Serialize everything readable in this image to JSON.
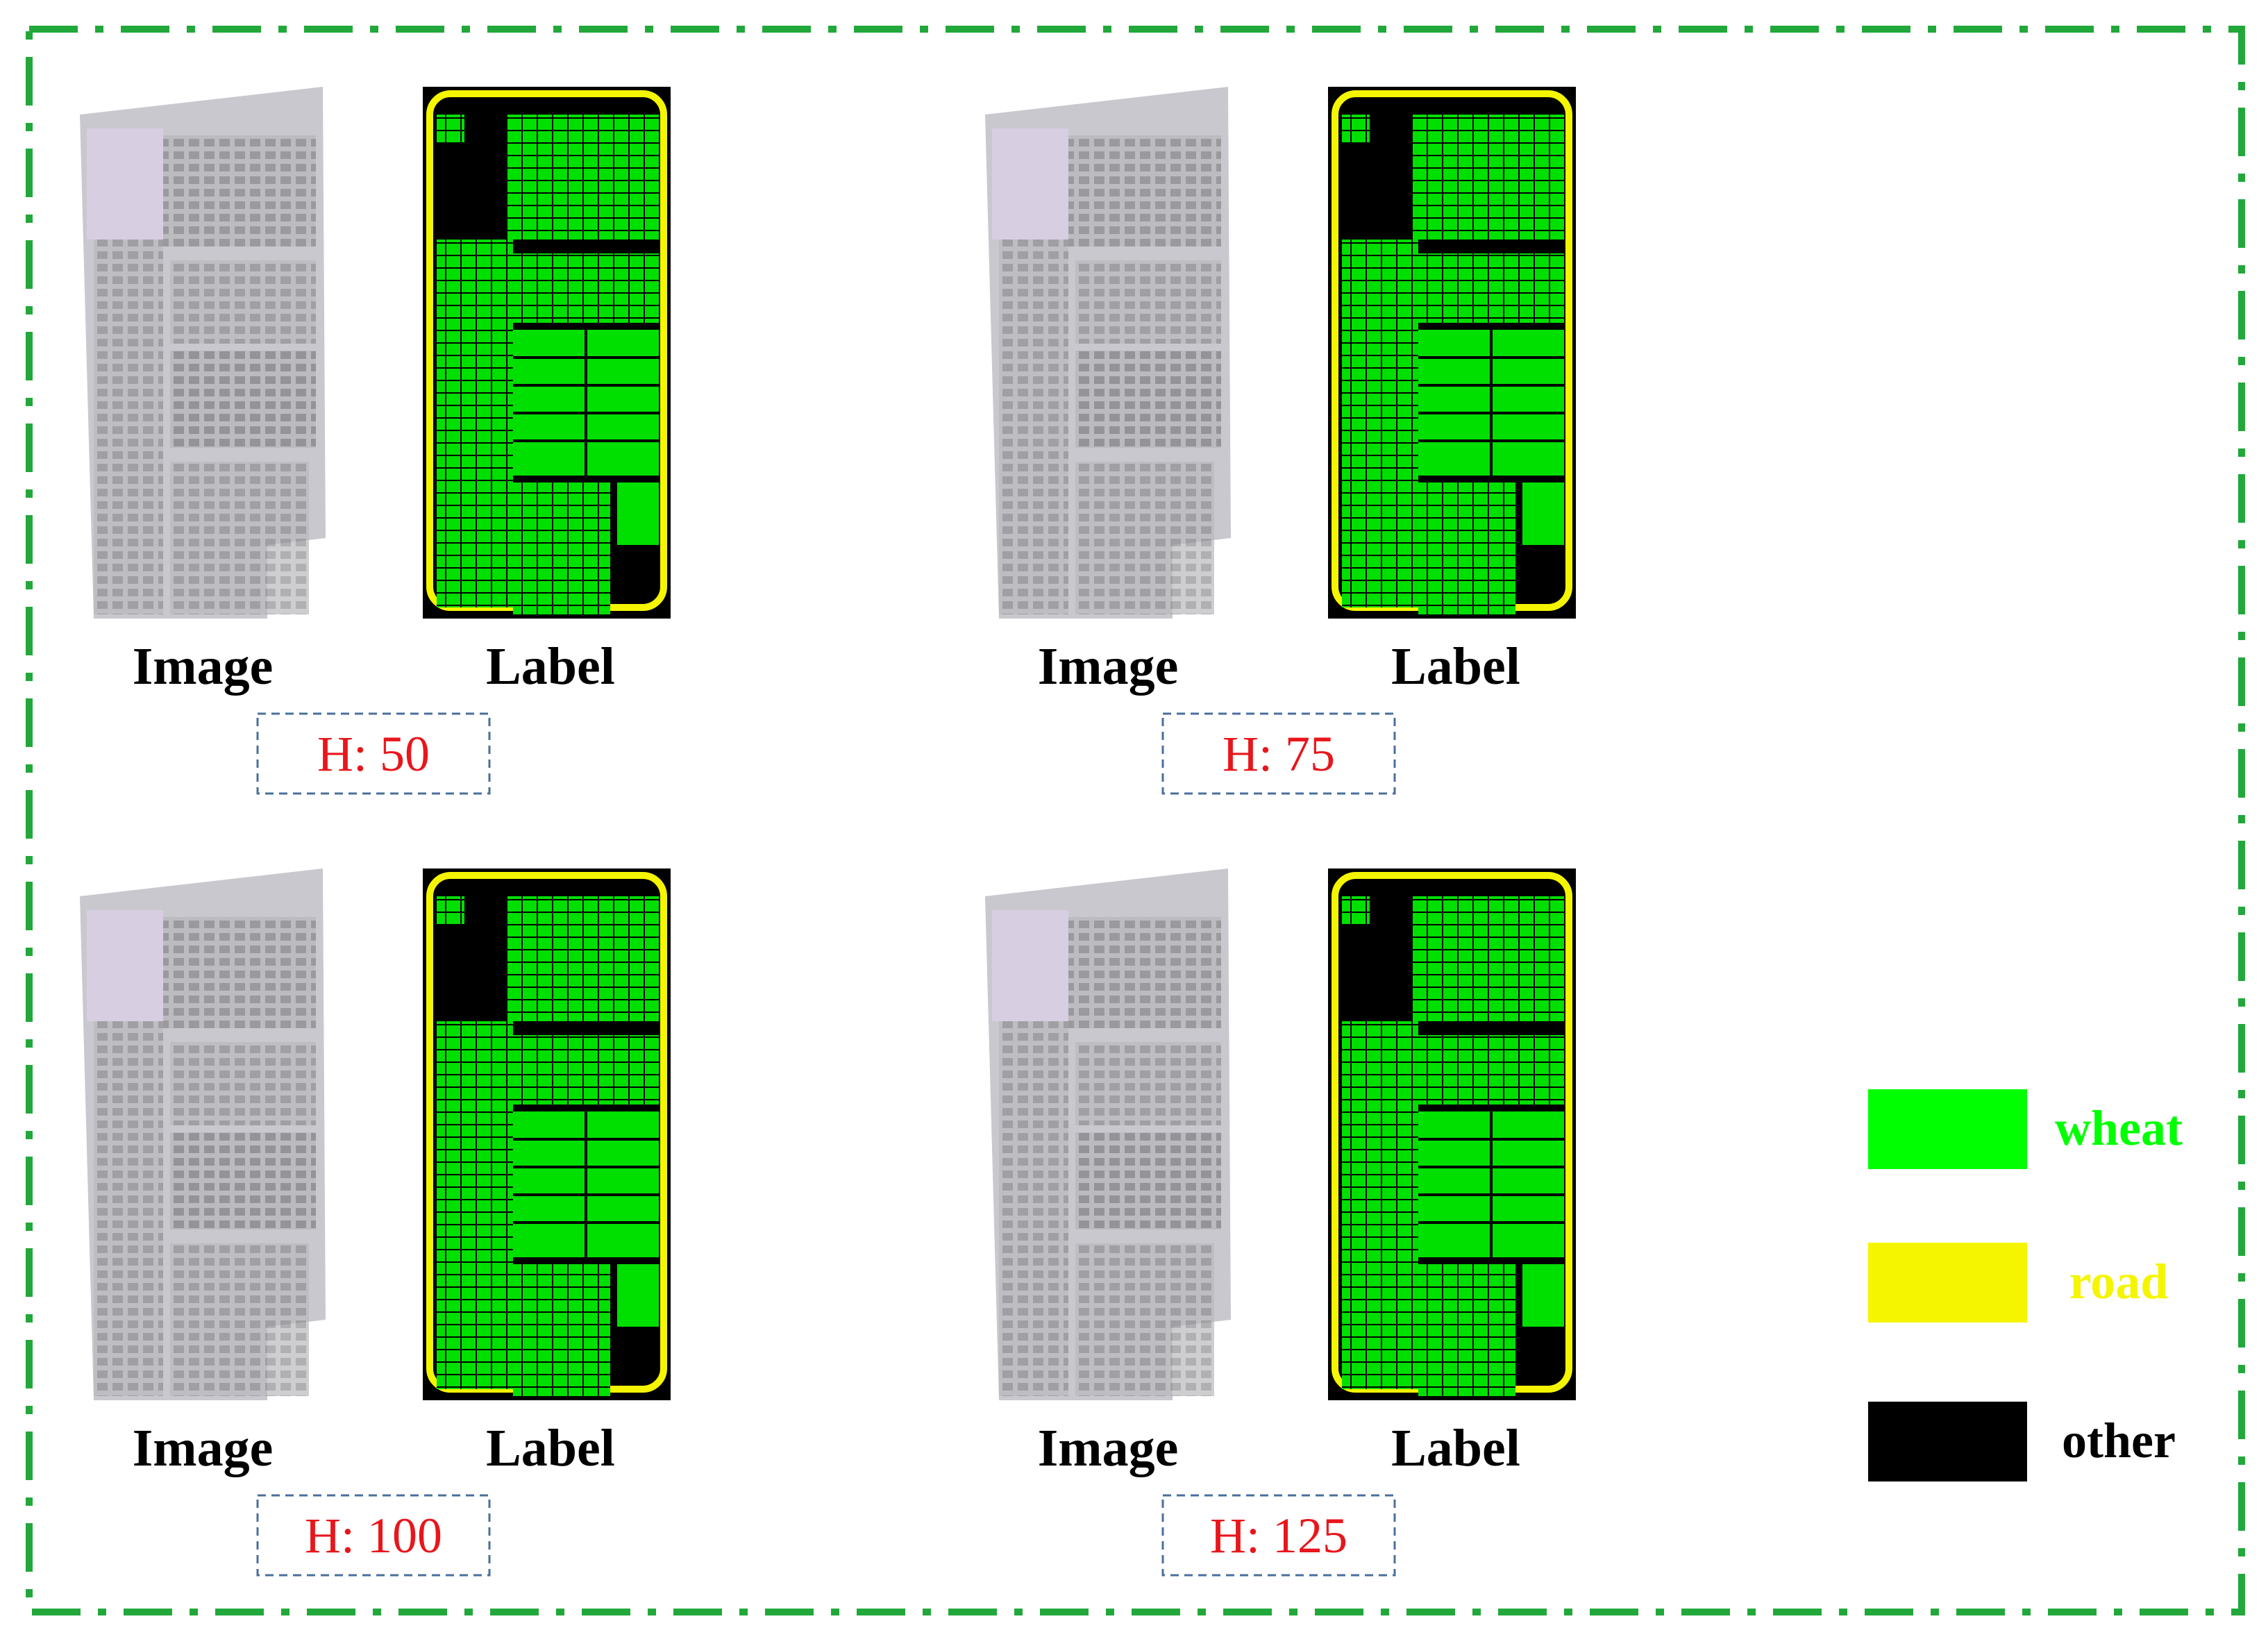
{
  "panels": [
    {
      "image_caption": "Image",
      "label_caption": "Label",
      "height": "H: 50"
    },
    {
      "image_caption": "Image",
      "label_caption": "Label",
      "height": "H: 75"
    },
    {
      "image_caption": "Image",
      "label_caption": "Label",
      "height": "H: 100"
    },
    {
      "image_caption": "Image",
      "label_caption": "Label",
      "height": "H: 125"
    }
  ],
  "legend": [
    {
      "name": "wheat",
      "color": "#00ff00"
    },
    {
      "name": "road",
      "color": "#f5f500"
    },
    {
      "name": "other",
      "color": "#000000"
    }
  ]
}
